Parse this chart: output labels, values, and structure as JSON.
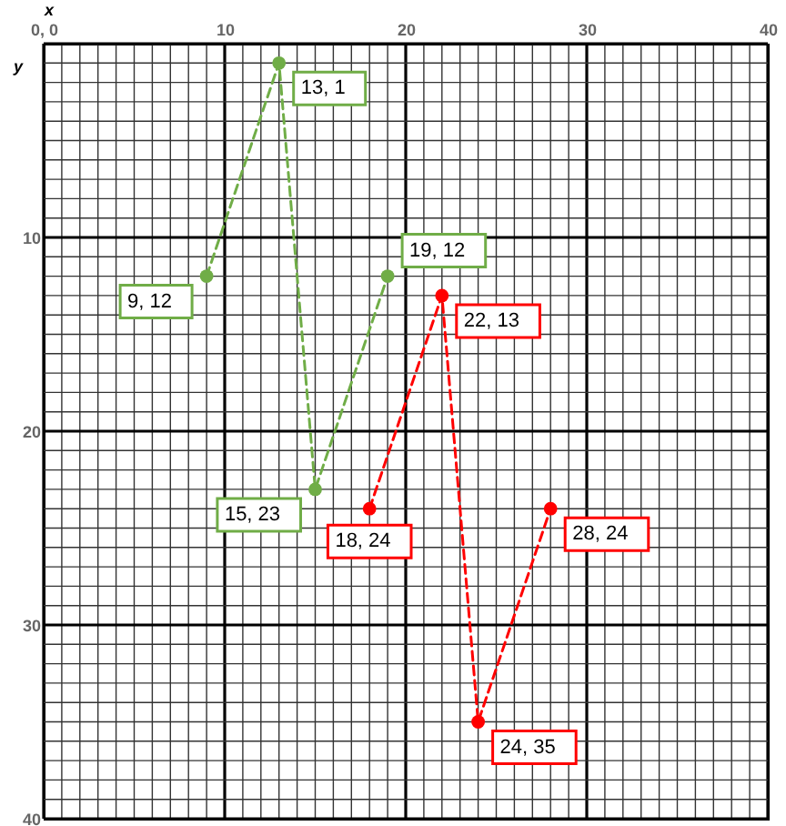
{
  "chart_data": {
    "type": "line",
    "xlabel": "x",
    "ylabel": "y",
    "series": [
      {
        "color": "#70ad47",
        "x": [
          9,
          13,
          15,
          19
        ],
        "values": [
          12,
          1,
          23,
          12
        ],
        "value_labels": [
          "9, 12",
          "13, 1",
          "15, 23",
          "19, 12"
        ]
      },
      {
        "color": "#ff0000",
        "x": [
          18,
          22,
          24,
          28
        ],
        "values": [
          24,
          13,
          35,
          24
        ],
        "value_labels": [
          "18, 24",
          "22, 13",
          "24, 35",
          "28, 24"
        ]
      }
    ],
    "xlim": [
      0,
      40
    ],
    "ylim": [
      40,
      0
    ],
    "xticks": [
      {
        "value": 0,
        "label": "0, 0"
      },
      {
        "value": 1,
        "label": null
      },
      {
        "value": 2,
        "label": null
      },
      {
        "value": 3,
        "label": null
      },
      {
        "value": 4,
        "label": null
      },
      {
        "value": 5,
        "label": null
      },
      {
        "value": 6,
        "label": null
      },
      {
        "value": 7,
        "label": null
      },
      {
        "value": 8,
        "label": null
      },
      {
        "value": 9,
        "label": null
      },
      10,
      {
        "value": 11,
        "label": null
      },
      {
        "value": 12,
        "label": null
      },
      {
        "value": 13,
        "label": null
      },
      {
        "value": 14,
        "label": null
      },
      {
        "value": 15,
        "label": null
      },
      {
        "value": 16,
        "label": null
      },
      {
        "value": 17,
        "label": null
      },
      {
        "value": 18,
        "label": null
      },
      {
        "value": 19,
        "label": null
      },
      20,
      {
        "value": 21,
        "label": null
      },
      {
        "value": 22,
        "label": null
      },
      {
        "value": 23,
        "label": null
      },
      {
        "value": 24,
        "label": null
      },
      {
        "value": 25,
        "label": null
      },
      {
        "value": 26,
        "label": null
      },
      {
        "value": 27,
        "label": null
      },
      {
        "value": 28,
        "label": null
      },
      {
        "value": 29,
        "label": null
      },
      30,
      {
        "value": 31,
        "label": null
      },
      {
        "value": 32,
        "label": null
      },
      {
        "value": 33,
        "label": null
      },
      {
        "value": 34,
        "label": null
      },
      {
        "value": 35,
        "label": null
      },
      {
        "value": 36,
        "label": null
      },
      {
        "value": 37,
        "label": null
      },
      {
        "value": 38,
        "label": null
      },
      {
        "value": 39,
        "label": null
      },
      40
    ],
    "yticks": [
      {
        "value": 0,
        "label": null
      },
      {
        "value": 1,
        "label": null
      },
      {
        "value": 2,
        "label": null
      },
      {
        "value": 3,
        "label": null
      },
      {
        "value": 4,
        "label": null
      },
      {
        "value": 5,
        "label": null
      },
      {
        "value": 6,
        "label": null
      },
      {
        "value": 7,
        "label": null
      },
      {
        "value": 8,
        "label": null
      },
      {
        "value": 9,
        "label": null
      },
      10,
      {
        "value": 11,
        "label": null
      },
      {
        "value": 12,
        "label": null
      },
      {
        "value": 13,
        "label": null
      },
      {
        "value": 14,
        "label": null
      },
      {
        "value": 15,
        "label": null
      },
      {
        "value": 16,
        "label": null
      },
      {
        "value": 17,
        "label": null
      },
      {
        "value": 18,
        "label": null
      },
      {
        "value": 19,
        "label": null
      },
      20,
      {
        "value": 21,
        "label": null
      },
      {
        "value": 22,
        "label": null
      },
      {
        "value": 23,
        "label": null
      },
      {
        "value": 24,
        "label": null
      },
      {
        "value": 25,
        "label": null
      },
      {
        "value": 26,
        "label": null
      },
      {
        "value": 27,
        "label": null
      },
      {
        "value": 28,
        "label": null
      },
      {
        "value": 29,
        "label": null
      },
      30,
      {
        "value": 31,
        "label": null
      },
      {
        "value": 32,
        "label": null
      },
      {
        "value": 33,
        "label": null
      },
      {
        "value": 34,
        "label": null
      },
      {
        "value": 35,
        "label": null
      },
      {
        "value": 36,
        "label": null
      },
      {
        "value": 37,
        "label": null
      },
      {
        "value": 38,
        "label": null
      },
      {
        "value": 39,
        "label": null
      },
      40
    ],
    "grid": true,
    "marker": "circle",
    "line_style": "dashed"
  }
}
